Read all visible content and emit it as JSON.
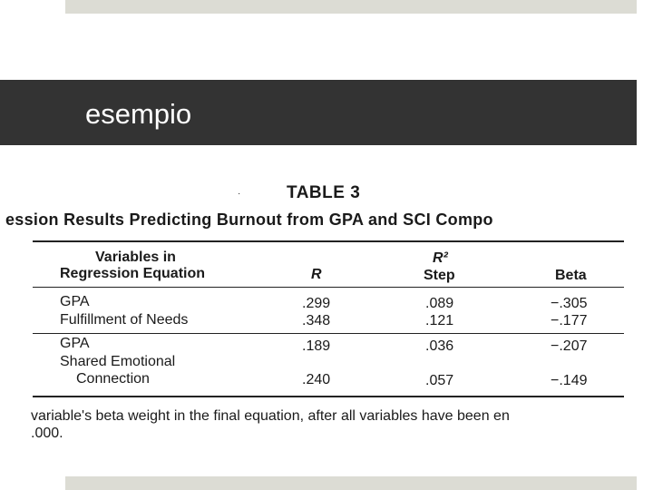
{
  "slide": {
    "title": "esempio"
  },
  "table": {
    "label": "TABLE 3",
    "caption": "ession Results Predicting Burnout from GPA and SCI Compo",
    "headers": {
      "variables_line1": "Variables in",
      "variables_line2": "Regression Equation",
      "r": "R",
      "r2_line1": "R²",
      "r2_line2": "Step",
      "beta": "Beta"
    },
    "rows": [
      {
        "variable": "GPA",
        "r": ".299",
        "r2_step": ".089",
        "beta": "−.305"
      },
      {
        "variable": "Fulfillment of Needs",
        "r": ".348",
        "r2_step": ".121",
        "beta": "−.177"
      },
      {
        "variable": "GPA",
        "r": ".189",
        "r2_step": ".036",
        "beta": "−.207"
      },
      {
        "variable_line1": "Shared Emotional",
        "variable_line2": "Connection",
        "r": ".240",
        "r2_step": ".057",
        "beta": "−.149"
      }
    ],
    "footnote_line1": "variable's beta weight in the final equation, after all variables have been en",
    "footnote_line2": ".000."
  },
  "colors": {
    "title_band": "#333333",
    "accent_bars": "#dcdcd4"
  }
}
